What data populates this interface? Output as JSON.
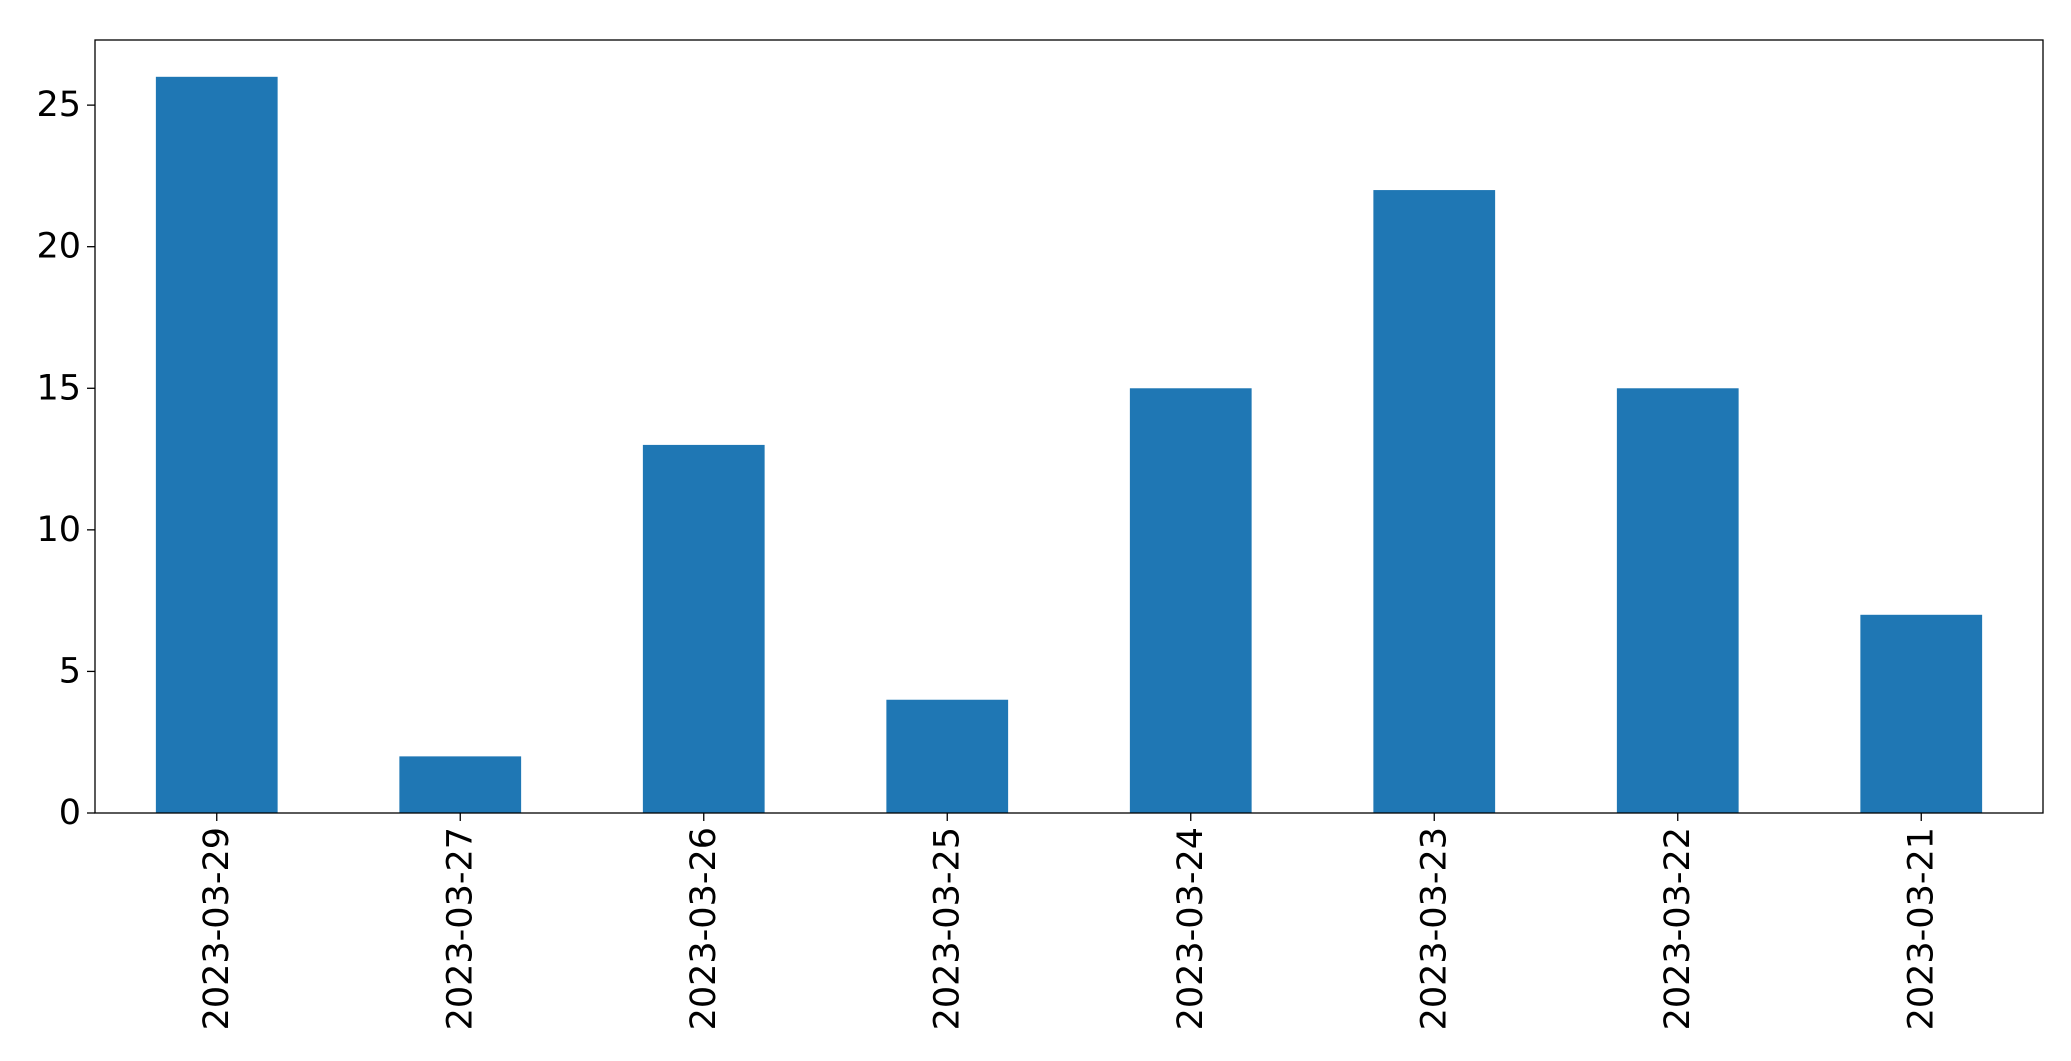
{
  "chart_data": {
    "type": "bar",
    "title": "",
    "xlabel": "",
    "ylabel": "",
    "categories": [
      "2023-03-29",
      "2023-03-27",
      "2023-03-26",
      "2023-03-25",
      "2023-03-24",
      "2023-03-23",
      "2023-03-22",
      "2023-03-21"
    ],
    "values": [
      26,
      2,
      13,
      4,
      15,
      22,
      15,
      7
    ],
    "ylim": [
      0,
      27.3
    ],
    "yticks": [
      0,
      5,
      10,
      15,
      20,
      25
    ],
    "bar_color": "#1f77b4",
    "grid": false,
    "legend": "none"
  }
}
